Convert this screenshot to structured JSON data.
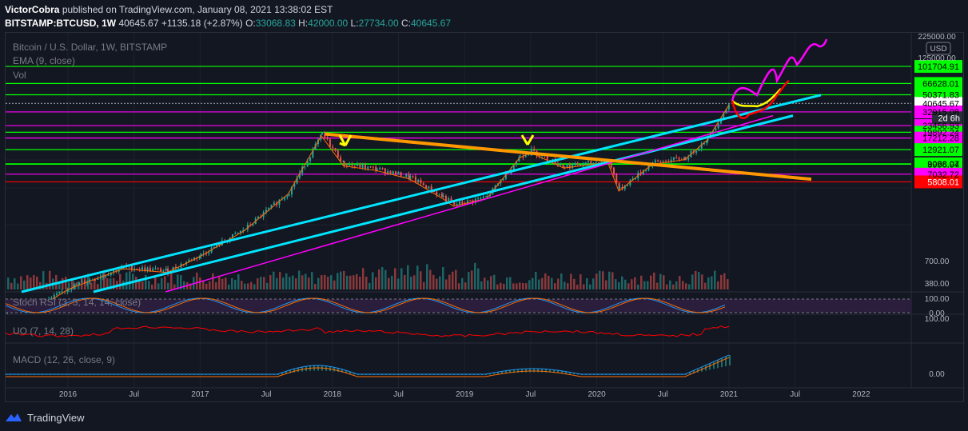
{
  "header": {
    "author": "VictorCobra",
    "published_text": "published on TradingView.com, January 08, 2021 13:38:02 EST",
    "symbol": "BITSTAMP:BTCUSD, 1W",
    "last": "40645.67",
    "change": "+1135.18 (+2.87%)",
    "o_label": "O:",
    "o": "33068.83",
    "h_label": "H:",
    "h": "42000.00",
    "l_label": "L:",
    "l": "27734.00",
    "c_label": "C:",
    "c": "40645.67"
  },
  "legend": {
    "series": "Bitcoin / U.S. Dollar, 1W, BITSTAMP",
    "ema": "EMA (9, close)",
    "vol": "Vol",
    "stoch": "Stoch RSI (3, 3, 14, 14, close)",
    "uo": "UO (7, 14, 28)",
    "macd": "MACD (12, 26, close, 9)"
  },
  "footer": {
    "brand": "TradingView"
  },
  "colors": {
    "bg": "#131722",
    "grid": "#1e222d",
    "up": "#26a69a",
    "down": "#ef5350",
    "cyan": "#00e5ff",
    "magenta": "#ff00ff",
    "orange": "#ff9800",
    "yellow": "#ffff00",
    "green_level": "#00ff00",
    "red_level": "#ff0000",
    "pink_level": "#ff00ff",
    "ema": "#ff6d00",
    "uo": "#ff0000",
    "stoch_k": "#2196f3",
    "stoch_d": "#ff6d00"
  },
  "chart_data": {
    "type": "candlestick",
    "title": "Bitcoin / U.S. Dollar, 1W, BITSTAMP",
    "price_scale": "log",
    "currency": "USD",
    "ylim": [
      380,
      225000
    ],
    "x_tick_labels": [
      "2016",
      "Jul",
      "2017",
      "Jul",
      "2018",
      "Jul",
      "2019",
      "Jul",
      "2020",
      "Jul",
      "2021",
      "Jul",
      "2022"
    ],
    "y_tick_labels": [
      "225000.00",
      "125000.00",
      "700.00",
      "380.00"
    ],
    "price_path": [
      [
        "2015-06",
        230
      ],
      [
        "2015-10",
        250
      ],
      [
        "2016-01",
        420
      ],
      [
        "2016-06",
        700
      ],
      [
        "2016-10",
        640
      ],
      [
        "2017-01",
        950
      ],
      [
        "2017-05",
        1800
      ],
      [
        "2017-09",
        4500
      ],
      [
        "2017-12",
        19000
      ],
      [
        "2018-02",
        9000
      ],
      [
        "2018-05",
        8000
      ],
      [
        "2018-08",
        6500
      ],
      [
        "2018-11",
        4000
      ],
      [
        "2018-12",
        3300
      ],
      [
        "2019-03",
        4000
      ],
      [
        "2019-06",
        11000
      ],
      [
        "2019-07",
        12500
      ],
      [
        "2019-10",
        8500
      ],
      [
        "2020-02",
        9800
      ],
      [
        "2020-03",
        4800
      ],
      [
        "2020-06",
        9300
      ],
      [
        "2020-09",
        10500
      ],
      [
        "2020-11",
        17000
      ],
      [
        "2021-01",
        40645.67
      ]
    ],
    "horizontal_levels": [
      {
        "value": 101704.91,
        "label": "101704.91",
        "color": "#00ff00"
      },
      {
        "value": 66628.01,
        "label": "66628.01",
        "color": "#00ff00"
      },
      {
        "value": 50371.83,
        "label": "50371.83",
        "color": "#00ff00"
      },
      {
        "value": 40645.67,
        "label": "40645.67",
        "color": "#ffffff",
        "kind": "last"
      },
      {
        "value": 32915.08,
        "label": "32915.08",
        "color": "#ff00ff"
      },
      {
        "value": 23456.93,
        "label": "23456.93",
        "color": "#ff00ff"
      },
      {
        "value": 19892.24,
        "label": "19892.24",
        "color": "#00ff00"
      },
      {
        "value": 17212.28,
        "label": "17212.28",
        "color": "#ff00ff"
      },
      {
        "value": 12921.07,
        "label": "12921.07",
        "color": "#00ff00"
      },
      {
        "value": 9088.07,
        "label": "9088.07",
        "color": "#00ff00"
      },
      {
        "value": 8996.94,
        "label": "8996.94",
        "color": "#00ff00"
      },
      {
        "value": 7032.72,
        "label": "7032.72",
        "color": "#ff00ff"
      },
      {
        "value": 5808.01,
        "label": "5808.01",
        "color": "#ff0000"
      }
    ],
    "countdown": "2d 6h",
    "oscillator_ticks": {
      "stoch": [
        "100.00",
        "0.00"
      ],
      "uo": [
        "100.00"
      ],
      "macd": [
        "0.00"
      ]
    }
  }
}
